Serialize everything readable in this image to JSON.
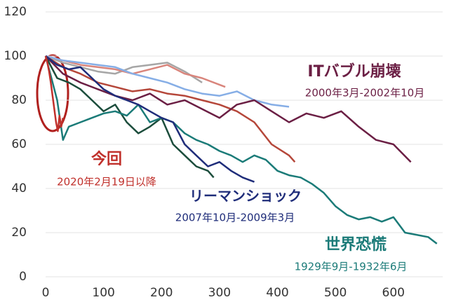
{
  "chart_data": {
    "type": "line",
    "xlim": [
      0,
      685
    ],
    "ylim": [
      0,
      120
    ],
    "xticks": [
      0,
      100,
      200,
      300,
      400,
      500,
      600
    ],
    "yticks": [
      0,
      20,
      40,
      60,
      80,
      100,
      120
    ],
    "grid": true,
    "series": [
      {
        "color": "#a6a6a6",
        "x": [
          0,
          30,
          60,
          90,
          120,
          150,
          180,
          210,
          240,
          270
        ],
        "values": [
          100,
          97,
          95,
          93,
          92,
          95,
          96,
          97,
          93,
          88
        ]
      },
      {
        "color": "#d9857c",
        "x": [
          0,
          30,
          60,
          90,
          120,
          150,
          180,
          210,
          240,
          270,
          300,
          310
        ],
        "values": [
          100,
          98,
          96,
          95,
          94,
          92,
          94,
          96,
          92,
          90,
          87,
          86
        ]
      },
      {
        "color": "#86aee6",
        "x": [
          0,
          30,
          60,
          90,
          120,
          150,
          180,
          210,
          240,
          270,
          300,
          330,
          360,
          390,
          420
        ],
        "values": [
          100,
          98,
          97,
          96,
          95,
          92,
          90,
          88,
          85,
          83,
          82,
          84,
          80,
          78,
          77
        ]
      },
      {
        "color": "#b5473a",
        "x": [
          0,
          30,
          60,
          90,
          120,
          150,
          180,
          210,
          240,
          270,
          300,
          330,
          360,
          390,
          420,
          430
        ],
        "values": [
          100,
          95,
          92,
          88,
          86,
          84,
          85,
          83,
          82,
          80,
          78,
          75,
          70,
          60,
          55,
          52
        ]
      },
      {
        "color": "#1c4d3c",
        "x": [
          0,
          20,
          40,
          60,
          80,
          100,
          120,
          140,
          160,
          180,
          200,
          220,
          240,
          260,
          280,
          290
        ],
        "values": [
          100,
          90,
          88,
          85,
          80,
          75,
          78,
          70,
          65,
          68,
          72,
          60,
          55,
          50,
          48,
          45
        ]
      },
      {
        "name": "世界恐慌",
        "period": "1929年9月-1932年6月",
        "color": "#1b7b78",
        "x": [
          0,
          10,
          20,
          30,
          40,
          60,
          80,
          100,
          120,
          140,
          160,
          180,
          200,
          220,
          240,
          260,
          280,
          300,
          320,
          340,
          360,
          380,
          400,
          420,
          440,
          460,
          480,
          500,
          520,
          540,
          560,
          580,
          600,
          620,
          640,
          660,
          675
        ],
        "values": [
          100,
          90,
          80,
          62,
          68,
          70,
          72,
          74,
          75,
          73,
          78,
          70,
          72,
          70,
          65,
          62,
          60,
          57,
          55,
          52,
          55,
          53,
          48,
          46,
          45,
          42,
          38,
          32,
          28,
          26,
          27,
          25,
          27,
          20,
          19,
          18,
          15
        ]
      },
      {
        "name": "ITバブル崩壊",
        "period": "2000年3月-2002年10月",
        "color": "#6b1f44",
        "x": [
          0,
          30,
          60,
          90,
          120,
          150,
          180,
          210,
          240,
          270,
          300,
          330,
          360,
          390,
          420,
          450,
          480,
          510,
          540,
          570,
          600,
          630
        ],
        "values": [
          100,
          92,
          88,
          85,
          82,
          80,
          83,
          78,
          80,
          76,
          72,
          78,
          80,
          75,
          70,
          74,
          72,
          75,
          68,
          62,
          60,
          52
        ]
      },
      {
        "name": "リーマンショック",
        "period": "2007年10月-2009年3月",
        "color": "#1f2d7a",
        "x": [
          0,
          20,
          40,
          60,
          80,
          100,
          120,
          140,
          160,
          180,
          200,
          220,
          240,
          260,
          280,
          300,
          320,
          340,
          360
        ],
        "values": [
          100,
          96,
          94,
          95,
          90,
          85,
          82,
          80,
          78,
          75,
          72,
          70,
          60,
          55,
          50,
          52,
          48,
          45,
          43
        ]
      },
      {
        "name": "今回",
        "period": "2020年2月19日以降",
        "color": "#c0302b",
        "x": [
          0,
          3,
          6,
          9,
          12,
          15,
          18,
          21,
          24,
          27,
          30
        ],
        "values": [
          100,
          97,
          93,
          88,
          82,
          76,
          70,
          66,
          73,
          68,
          72
        ]
      }
    ]
  }
}
